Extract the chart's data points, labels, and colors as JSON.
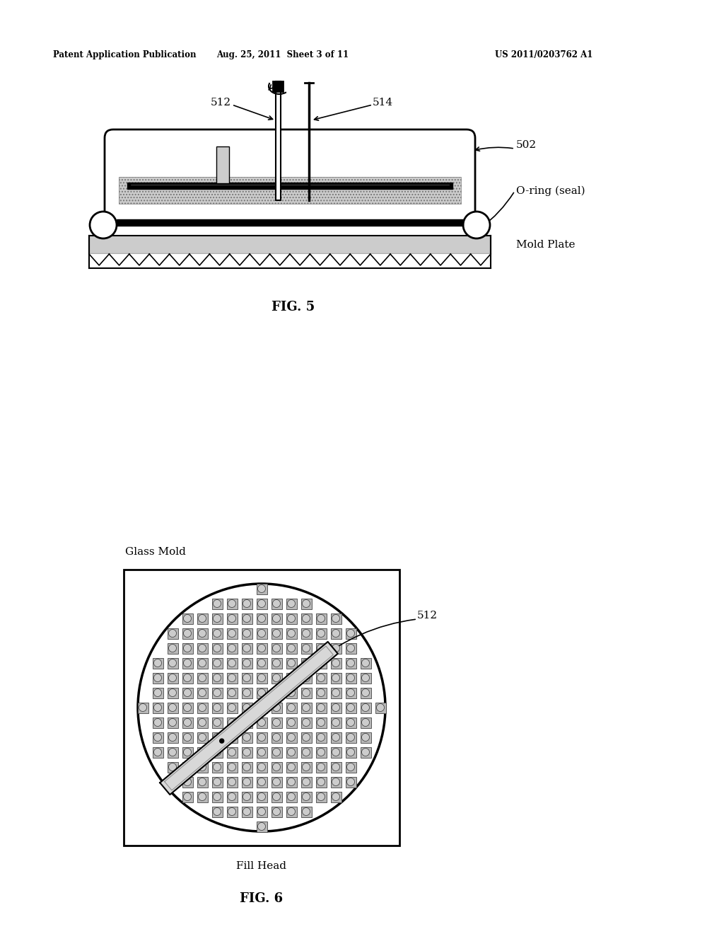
{
  "bg_color": "#ffffff",
  "header_left": "Patent Application Publication",
  "header_mid": "Aug. 25, 2011  Sheet 3 of 11",
  "header_right": "US 2011/0203762 A1",
  "fig5_label": "FIG. 5",
  "fig6_label": "FIG. 6",
  "fig5_caption_mold_plate": "Mold Plate",
  "fig5_caption_oring": "O-ring (seal)",
  "fig5_label_512": "512",
  "fig5_label_514": "514",
  "fig5_label_502": "502",
  "fig6_label_glass_mold": "Glass Mold",
  "fig6_label_fill_head": "Fill Head",
  "fig6_label_512": "512",
  "line_color": "#000000",
  "gray_fill": "#b0b0b0",
  "dark_gray": "#404040",
  "light_gray": "#cccccc",
  "mid_gray": "#888888"
}
